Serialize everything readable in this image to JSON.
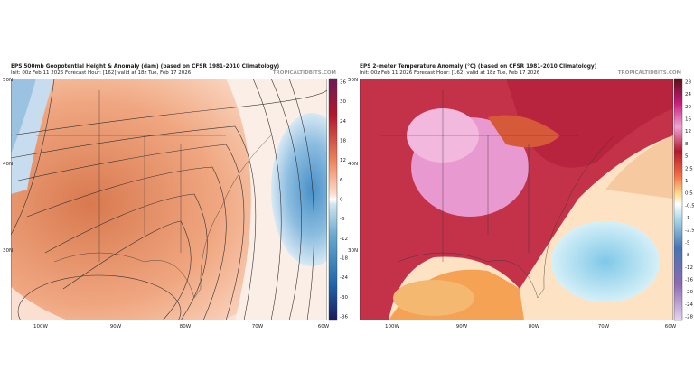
{
  "panels": [
    {
      "title": "EPS 500mb Geopotential Height & Anomaly (dam) (based on CFSR 1981-2010 Climatology)",
      "subtitle": "Init: 00z Feb 11 2026   Forecast Hour: [162]   valid at 18z Tue, Feb 17 2026",
      "credit": "TROPICALTIDBITS.COM",
      "lat_labels": [
        "50N",
        "40N",
        "30N"
      ],
      "lon_labels": [
        "100W",
        "90W",
        "80W",
        "70W",
        "60W"
      ],
      "colorbar_labels": [
        "36",
        "30",
        "24",
        "18",
        "12",
        "6",
        "0",
        "-6",
        "-12",
        "-18",
        "-24",
        "-30",
        "-36"
      ]
    },
    {
      "title": "EPS 2-meter Temperature Anomaly (°C) (based on CFSR 1981-2010 Climatology)",
      "subtitle": "Init: 00z Feb 11 2026   Forecast Hour: [162]   valid at 18z Tue, Feb 17 2026",
      "credit": "TROPICALTIDBITS.COM",
      "lat_labels": [
        "50N",
        "40N",
        "30N"
      ],
      "lon_labels": [
        "100W",
        "90W",
        "80W",
        "70W",
        "60W"
      ],
      "colorbar_labels": [
        "28",
        "24",
        "20",
        "16",
        "12",
        "8",
        "5",
        "2.5",
        "1",
        "0.5",
        "-0.5",
        "-1",
        "-2.5",
        "-5",
        "-8",
        "-12",
        "-16",
        "-20",
        "-24",
        "-28"
      ]
    }
  ]
}
